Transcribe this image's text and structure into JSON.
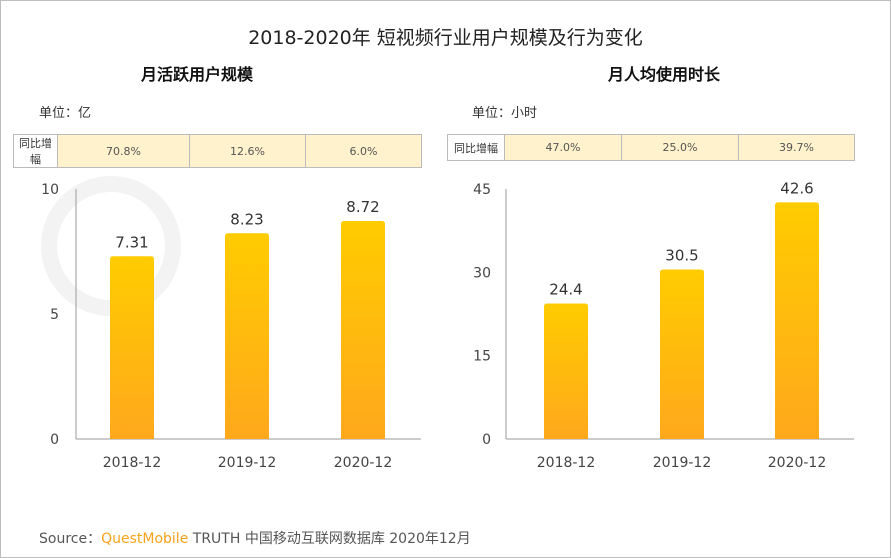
{
  "title": "2018-2020年 短视频行业用户规模及行为变化",
  "watermark": "QUEST MOBILE",
  "colors": {
    "bar_top": "#ffcc00",
    "bar_bottom": "#ffa81c",
    "table_fill": "#fff2cc"
  },
  "chart_data": [
    {
      "type": "bar",
      "title": "月活跃用户规模",
      "unit": "单位：亿",
      "categories": [
        "2018-12",
        "2019-12",
        "2020-12"
      ],
      "values": [
        7.31,
        8.23,
        8.72
      ],
      "data_labels": [
        "7.31",
        "8.23",
        "8.72"
      ],
      "ylim": [
        0,
        10
      ],
      "yticks": [
        "0",
        "5",
        "10"
      ],
      "growth_label": "同比增幅",
      "growth": [
        "70.8%",
        "12.6%",
        "6.0%"
      ]
    },
    {
      "type": "bar",
      "title": "月人均使用时长",
      "unit": "单位：小时",
      "categories": [
        "2018-12",
        "2019-12",
        "2020-12"
      ],
      "values": [
        24.4,
        30.5,
        42.6
      ],
      "data_labels": [
        "24.4",
        "30.5",
        "42.6"
      ],
      "ylim": [
        0,
        45
      ],
      "yticks": [
        "0",
        "15",
        "30",
        "45"
      ],
      "growth_label": "同比增幅",
      "growth": [
        "47.0%",
        "25.0%",
        "39.7%"
      ]
    }
  ],
  "source": {
    "prefix": "Source：",
    "brand": "QuestMobile",
    "rest": " TRUTH 中国移动互联网数据库 2020年12月"
  }
}
